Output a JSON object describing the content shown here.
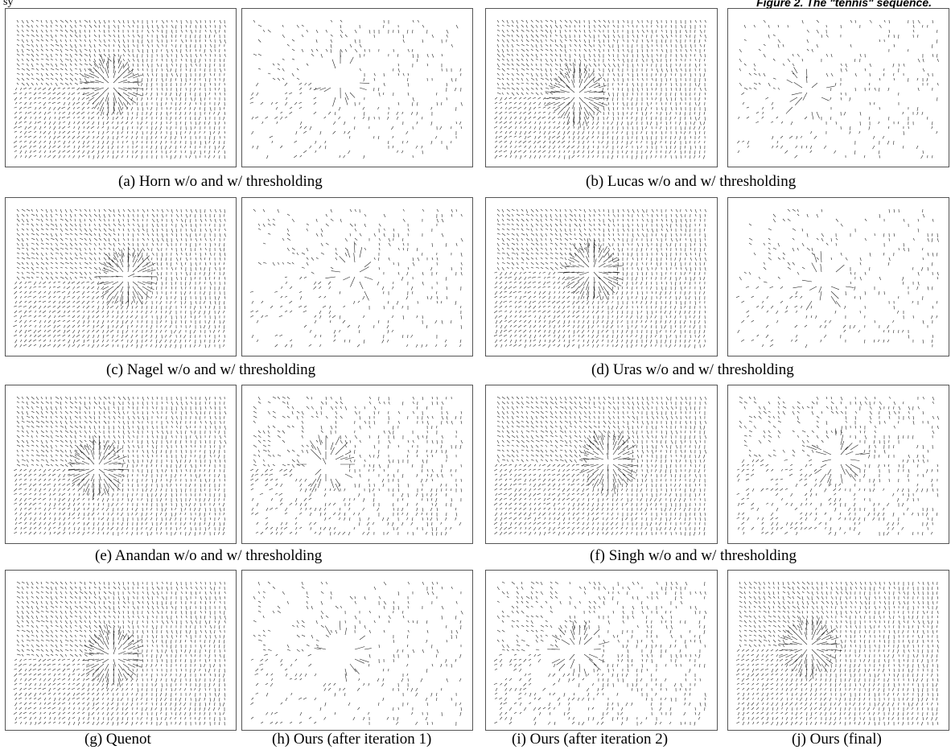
{
  "header": {
    "left_fragment": "sy",
    "right_fragment": "Figure 2. The \"tennis\" sequence."
  },
  "rows": [
    {
      "left_caption": "(a) Horn w/o and w/ thresholding",
      "right_caption": "(b) Lucas w/o and w/ thresholding"
    },
    {
      "left_caption": "(c) Nagel w/o and w/ thresholding",
      "right_caption": "(d) Uras w/o and w/ thresholding"
    },
    {
      "left_caption": "(e) Anandan w/o and w/ thresholding",
      "right_caption": "(f) Singh w/o and w/ thresholding"
    },
    {
      "captions": [
        "(g) Quenot",
        "(h) Ours (after iteration 1)",
        "(i) Ours (after iteration 2)",
        "(j) Ours (final)"
      ]
    }
  ],
  "colors": {
    "vector": "#222222",
    "frame": "#555555"
  }
}
